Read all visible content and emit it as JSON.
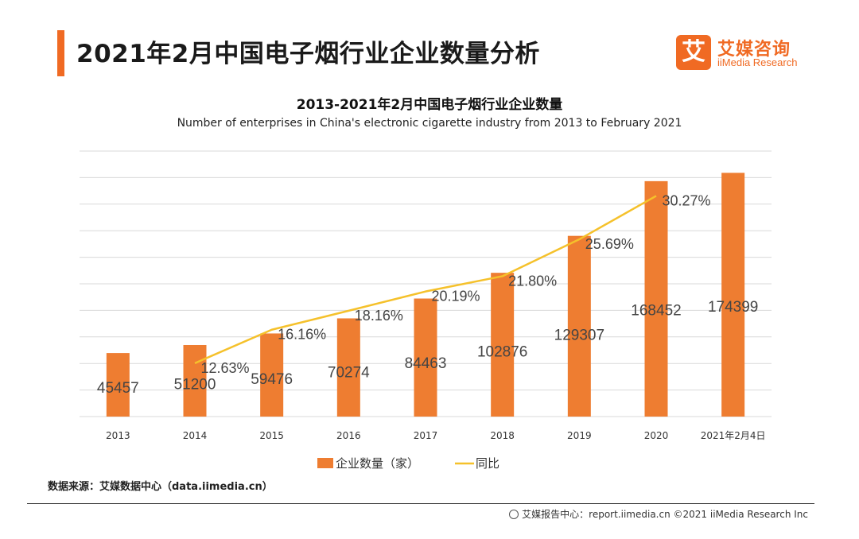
{
  "header": {
    "title": "2021年2月中国电子烟行业企业数量分析",
    "logo_mark": "艾",
    "logo_cn": "艾媒咨询",
    "logo_en": "iiMedia Research"
  },
  "chart_data": {
    "type": "bar",
    "title": "2013-2021年2月中国电子烟行业企业数量",
    "subtitle": "Number of enterprises in China's electronic cigarette industry from 2013 to February 2021",
    "categories": [
      "2013",
      "2014",
      "2015",
      "2016",
      "2017",
      "2018",
      "2019",
      "2020",
      "2021年2月4日"
    ],
    "series": [
      {
        "name": "企业数量（家）",
        "type": "bar",
        "values": [
          45457,
          51200,
          59476,
          70274,
          84463,
          102876,
          129307,
          168452,
          174399
        ],
        "value_labels": [
          "45457",
          "51200",
          "59476",
          "70274",
          "84463",
          "102876",
          "129307",
          "168452",
          "174399"
        ]
      },
      {
        "name": "同比",
        "type": "line",
        "values": [
          null,
          12.63,
          16.16,
          18.16,
          20.19,
          21.8,
          25.69,
          30.27,
          null
        ],
        "value_labels": [
          "",
          "12.63%",
          "16.16%",
          "18.16%",
          "20.19%",
          "21.80%",
          "25.69%",
          "30.27%",
          ""
        ]
      }
    ],
    "grid": true,
    "legend_position": "bottom",
    "colors": {
      "bar": "#ee7d31",
      "line": "#f5c12b",
      "grid": "#d9d9d9"
    }
  },
  "source": "数据来源：艾媒数据中心（data.iimedia.cn）",
  "footer": "艾媒报告中心：report.iimedia.cn ©2021 iiMedia Research Inc"
}
